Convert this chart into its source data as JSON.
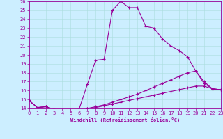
{
  "xlabel": "Windchill (Refroidissement éolien,°C)",
  "bg_color": "#cceeff",
  "line_color": "#990099",
  "xlim": [
    0,
    23
  ],
  "ylim": [
    14,
    26
  ],
  "yticks": [
    14,
    15,
    16,
    17,
    18,
    19,
    20,
    21,
    22,
    23,
    24,
    25,
    26
  ],
  "xticks": [
    0,
    1,
    2,
    3,
    4,
    5,
    6,
    7,
    8,
    9,
    10,
    11,
    12,
    13,
    14,
    15,
    16,
    17,
    18,
    19,
    20,
    21,
    22,
    23
  ],
  "series": [
    [
      14.9,
      14.1,
      14.2,
      13.9,
      13.8,
      13.8,
      13.9,
      16.7,
      19.4,
      19.5,
      25.0,
      26.0,
      25.3,
      25.3,
      23.2,
      23.0,
      21.8,
      21.0,
      20.5,
      19.8,
      18.2,
      17.0,
      16.2,
      16.1
    ],
    [
      14.9,
      14.1,
      14.2,
      13.9,
      13.8,
      13.8,
      13.9,
      14.0,
      14.2,
      14.4,
      14.7,
      15.0,
      15.3,
      15.6,
      16.0,
      16.4,
      16.8,
      17.2,
      17.6,
      18.0,
      18.2,
      16.8,
      16.2,
      16.1
    ],
    [
      14.9,
      14.1,
      14.2,
      13.9,
      13.8,
      13.8,
      13.9,
      14.0,
      14.1,
      14.3,
      14.5,
      14.7,
      14.9,
      15.1,
      15.3,
      15.5,
      15.7,
      15.9,
      16.1,
      16.3,
      16.5,
      16.5,
      16.2,
      16.1
    ]
  ]
}
